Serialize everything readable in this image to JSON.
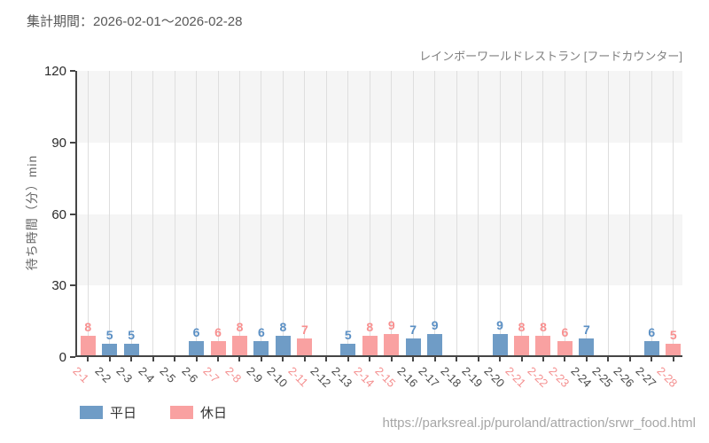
{
  "report": {
    "title": "集計期間：2026-02-01～2026-02-28"
  },
  "footer": {
    "url": "https://parksreal.jp/puroland/attraction/srwr_food.html"
  },
  "chart_data": {
    "type": "bar",
    "subtitle": "レインボーワールドレストラン [フードカウンター]",
    "ylabel": "待ち時間（分）min",
    "ylim": [
      0,
      120
    ],
    "yticks": [
      0,
      30,
      60,
      90,
      120
    ],
    "grid": "vertical-per-category, horizontal striped bands",
    "legend_position": "bottom-left",
    "legend": [
      {
        "label": "平日",
        "kind": "weekday"
      },
      {
        "label": "休日",
        "kind": "holiday"
      }
    ],
    "categories": [
      "2-1",
      "2-2",
      "2-3",
      "2-4",
      "2-5",
      "2-6",
      "2-7",
      "2-8",
      "2-9",
      "2-10",
      "2-11",
      "2-12",
      "2-13",
      "2-14",
      "2-15",
      "2-16",
      "2-17",
      "2-18",
      "2-19",
      "2-20",
      "2-21",
      "2-22",
      "2-23",
      "2-24",
      "2-25",
      "2-26",
      "2-27",
      "2-28"
    ],
    "days": [
      {
        "label": "2-1",
        "value": 8,
        "kind": "holiday"
      },
      {
        "label": "2-2",
        "value": 5,
        "kind": "weekday"
      },
      {
        "label": "2-3",
        "value": 5,
        "kind": "weekday"
      },
      {
        "label": "2-4",
        "value": null,
        "kind": "weekday"
      },
      {
        "label": "2-5",
        "value": null,
        "kind": "weekday"
      },
      {
        "label": "2-6",
        "value": 6,
        "kind": "weekday"
      },
      {
        "label": "2-7",
        "value": 6,
        "kind": "holiday"
      },
      {
        "label": "2-8",
        "value": 8,
        "kind": "holiday"
      },
      {
        "label": "2-9",
        "value": 6,
        "kind": "weekday"
      },
      {
        "label": "2-10",
        "value": 8,
        "kind": "weekday"
      },
      {
        "label": "2-11",
        "value": 7,
        "kind": "holiday"
      },
      {
        "label": "2-12",
        "value": null,
        "kind": "weekday"
      },
      {
        "label": "2-13",
        "value": 5,
        "kind": "weekday"
      },
      {
        "label": "2-14",
        "value": 8,
        "kind": "holiday"
      },
      {
        "label": "2-15",
        "value": 9,
        "kind": "holiday"
      },
      {
        "label": "2-16",
        "value": 7,
        "kind": "weekday"
      },
      {
        "label": "2-17",
        "value": 9,
        "kind": "weekday"
      },
      {
        "label": "2-18",
        "value": null,
        "kind": "weekday"
      },
      {
        "label": "2-19",
        "value": null,
        "kind": "weekday"
      },
      {
        "label": "2-20",
        "value": 9,
        "kind": "weekday"
      },
      {
        "label": "2-21",
        "value": 8,
        "kind": "holiday"
      },
      {
        "label": "2-22",
        "value": 8,
        "kind": "holiday"
      },
      {
        "label": "2-23",
        "value": 6,
        "kind": "holiday"
      },
      {
        "label": "2-24",
        "value": 7,
        "kind": "weekday"
      },
      {
        "label": "2-25",
        "value": null,
        "kind": "weekday"
      },
      {
        "label": "2-26",
        "value": null,
        "kind": "weekday"
      },
      {
        "label": "2-27",
        "value": 6,
        "kind": "weekday"
      },
      {
        "label": "2-28",
        "value": 5,
        "kind": "holiday"
      }
    ],
    "colors": {
      "weekday_bar": "#6f9cc6",
      "holiday_bar": "#f9a1a1",
      "weekday_value_label": "#5a8fc4",
      "holiday_value_label": "#f88f8f",
      "weekday_tick_label": "#4a4a4a",
      "holiday_tick_label": "#f49090",
      "band": "#f5f5f5",
      "gridline": "#dedede",
      "axis": "#454545"
    }
  }
}
